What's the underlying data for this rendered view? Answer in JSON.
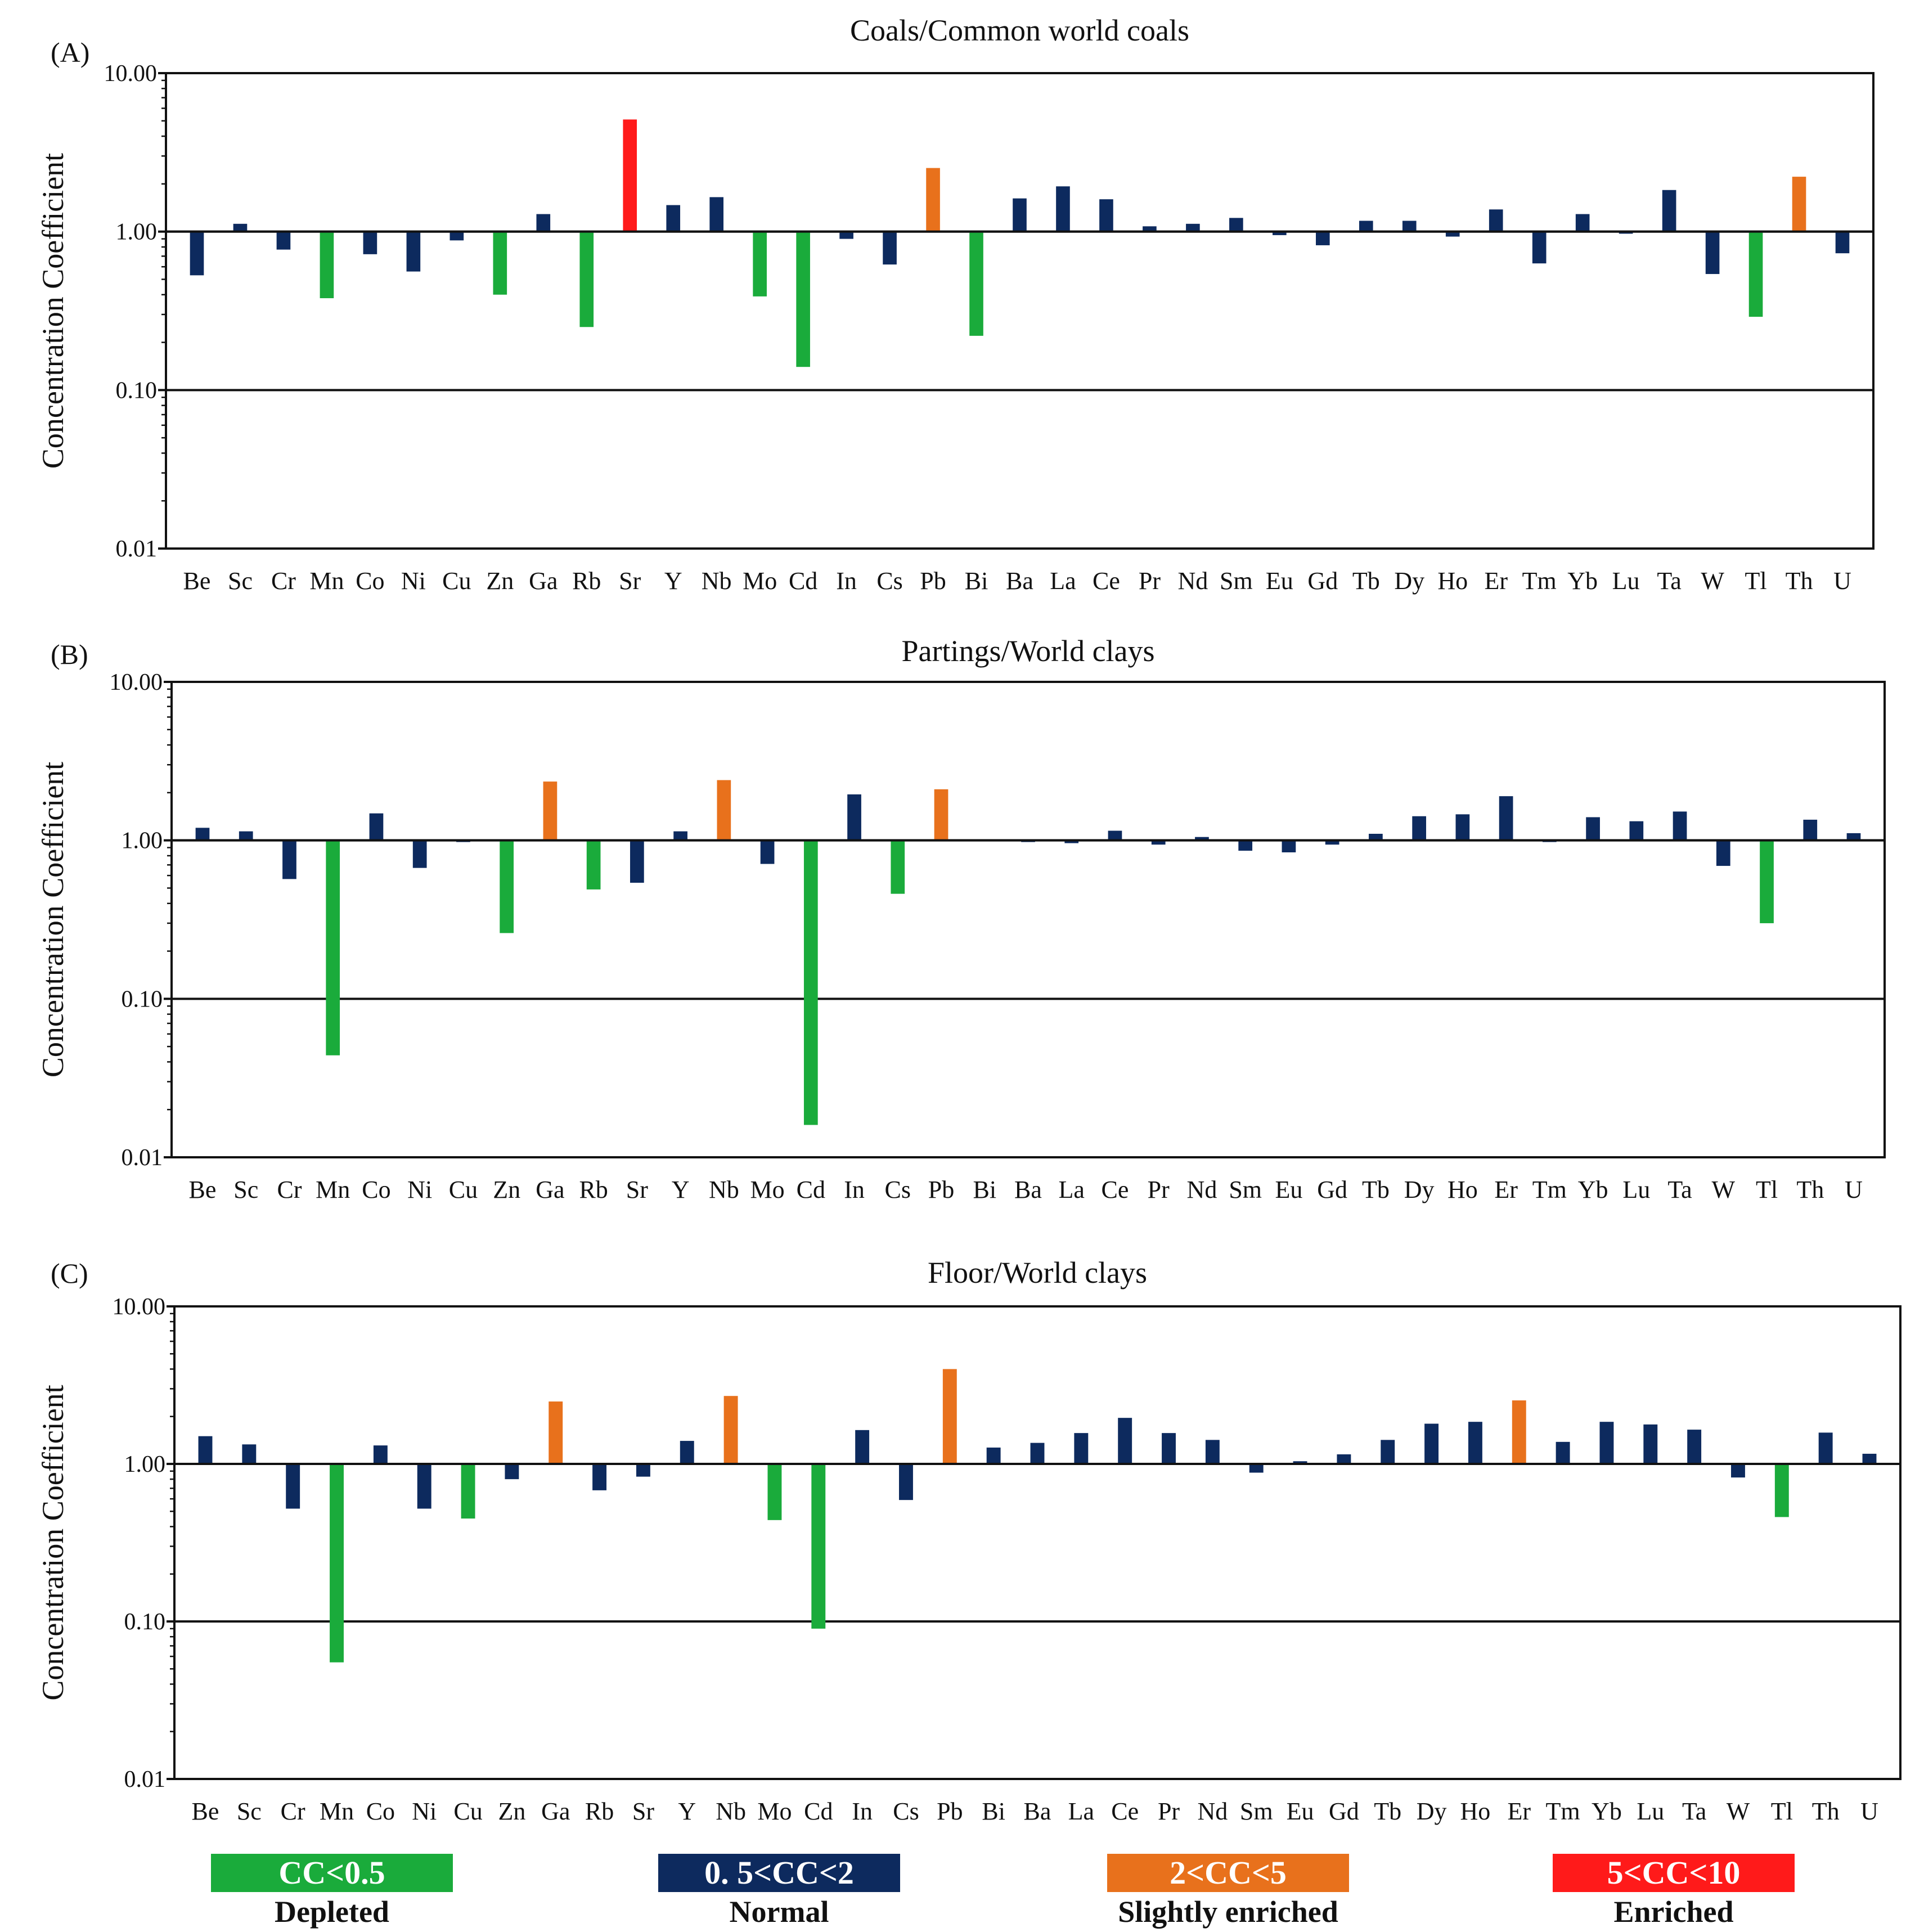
{
  "colors": {
    "depleted": "#1aab3b",
    "normal": "#0d2a5e",
    "slightly": "#e8711c",
    "enriched": "#ff1a1a"
  },
  "chart_data": [
    {
      "type": "bar",
      "label": "(A)",
      "title": "Coals/Common world coals",
      "ylabel": "Concentration Coefficient",
      "yscale": "log",
      "ylim": [
        0.01,
        10
      ],
      "baseline": 1,
      "yticks": [
        "10.00",
        "1.00",
        "0.10",
        "0.01"
      ],
      "categories": [
        "Be",
        "Sc",
        "Cr",
        "Mn",
        "Co",
        "Ni",
        "Cu",
        "Zn",
        "Ga",
        "Rb",
        "Sr",
        "Y",
        "Nb",
        "Mo",
        "Cd",
        "In",
        "Cs",
        "Pb",
        "Bi",
        "Ba",
        "La",
        "Ce",
        "Pr",
        "Nd",
        "Sm",
        "Eu",
        "Gd",
        "Tb",
        "Dy",
        "Ho",
        "Er",
        "Tm",
        "Yb",
        "Lu",
        "Ta",
        "W",
        "Tl",
        "Th",
        "U"
      ],
      "values": [
        0.53,
        1.12,
        0.77,
        0.38,
        0.72,
        0.56,
        0.88,
        0.4,
        1.29,
        0.25,
        5.1,
        1.47,
        1.65,
        0.39,
        0.14,
        0.9,
        0.62,
        2.52,
        0.22,
        1.62,
        1.93,
        1.6,
        1.08,
        1.12,
        1.22,
        0.95,
        0.82,
        1.17,
        1.17,
        0.93,
        1.38,
        0.63,
        1.29,
        0.97,
        1.83,
        0.54,
        0.29,
        2.22,
        0.73
      ]
    },
    {
      "type": "bar",
      "label": "(B)",
      "title": "Partings/World clays",
      "ylabel": "Concentration Coefficient",
      "yscale": "log",
      "ylim": [
        0.01,
        10
      ],
      "baseline": 1,
      "yticks": [
        "10.00",
        "1.00",
        "0.10",
        "0.01"
      ],
      "categories": [
        "Be",
        "Sc",
        "Cr",
        "Mn",
        "Co",
        "Ni",
        "Cu",
        "Zn",
        "Ga",
        "Rb",
        "Sr",
        "Y",
        "Nb",
        "Mo",
        "Cd",
        "In",
        "Cs",
        "Pb",
        "Bi",
        "Ba",
        "La",
        "Ce",
        "Pr",
        "Nd",
        "Sm",
        "Eu",
        "Gd",
        "Tb",
        "Dy",
        "Ho",
        "Er",
        "Tm",
        "Yb",
        "Lu",
        "Ta",
        "W",
        "Tl",
        "Th",
        "U"
      ],
      "values": [
        1.2,
        1.14,
        0.57,
        0.044,
        1.48,
        0.67,
        1.0,
        0.26,
        2.35,
        0.49,
        0.54,
        1.14,
        2.4,
        0.71,
        0.016,
        1.95,
        0.46,
        2.1,
        1.01,
        1.0,
        0.96,
        1.15,
        0.94,
        1.05,
        0.86,
        0.84,
        0.94,
        1.1,
        1.42,
        1.46,
        1.9,
        1.0,
        1.4,
        1.32,
        1.52,
        0.69,
        0.3,
        1.35,
        1.11
      ]
    },
    {
      "type": "bar",
      "label": "(C)",
      "title": "Floor/World clays",
      "ylabel": "Concentration Coefficient",
      "yscale": "log",
      "ylim": [
        0.01,
        10
      ],
      "baseline": 1,
      "yticks": [
        "10.00",
        "1.00",
        "0.10",
        "0.01"
      ],
      "categories": [
        "Be",
        "Sc",
        "Cr",
        "Mn",
        "Co",
        "Ni",
        "Cu",
        "Zn",
        "Ga",
        "Rb",
        "Sr",
        "Y",
        "Nb",
        "Mo",
        "Cd",
        "In",
        "Cs",
        "Pb",
        "Bi",
        "Ba",
        "La",
        "Ce",
        "Pr",
        "Nd",
        "Sm",
        "Eu",
        "Gd",
        "Tb",
        "Dy",
        "Ho",
        "Er",
        "Tm",
        "Yb",
        "Lu",
        "Ta",
        "W",
        "Tl",
        "Th",
        "U"
      ],
      "values": [
        1.5,
        1.33,
        0.52,
        0.055,
        1.31,
        0.52,
        0.45,
        0.8,
        2.49,
        0.68,
        0.83,
        1.4,
        2.7,
        0.44,
        0.09,
        1.64,
        0.59,
        4.0,
        1.27,
        1.36,
        1.57,
        1.96,
        1.57,
        1.42,
        0.88,
        1.04,
        1.15,
        1.42,
        1.8,
        1.85,
        2.53,
        1.38,
        1.85,
        1.78,
        1.65,
        0.82,
        0.46,
        1.58,
        1.16
      ]
    }
  ],
  "legend": [
    {
      "range": "CC<0.5",
      "label": "Depleted",
      "color": "#1aab3b"
    },
    {
      "range": "0. 5<CC<2",
      "label": "Normal",
      "color": "#0d2a5e"
    },
    {
      "range": "2<CC<5",
      "label": "Slightly enriched",
      "color": "#e8711c"
    },
    {
      "range": "5<CC<10",
      "label": "Enriched",
      "color": "#ff1a1a"
    }
  ]
}
